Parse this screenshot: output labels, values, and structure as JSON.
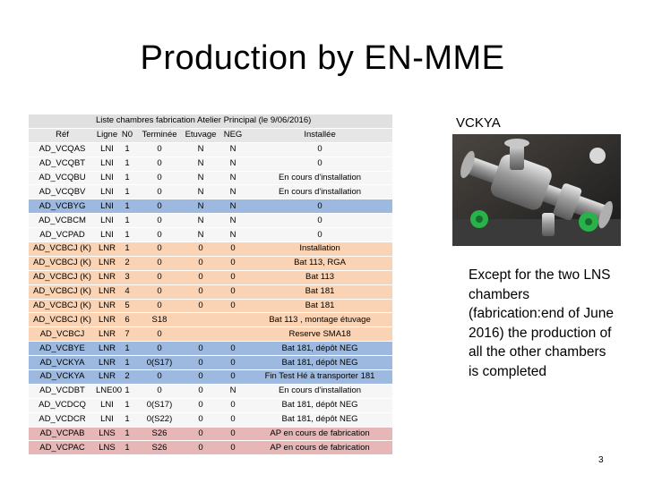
{
  "title": "Production by EN-MME",
  "table": {
    "caption": "Liste chambres fabrication Atelier Principal (le 9/06/2016)",
    "headers": [
      "Réf",
      "Ligne",
      "N0",
      "Terminée",
      "Etuvage",
      "NEG",
      "Installée"
    ],
    "rows": [
      {
        "style": "white",
        "cells": [
          "AD_VCQAS",
          "LNI",
          "1",
          "0",
          "N",
          "N",
          "0"
        ]
      },
      {
        "style": "white",
        "cells": [
          "AD_VCQBT",
          "LNI",
          "1",
          "0",
          "N",
          "N",
          "0"
        ]
      },
      {
        "style": "white",
        "cells": [
          "AD_VCQBU",
          "LNI",
          "1",
          "0",
          "N",
          "N",
          "En cours d'installation"
        ]
      },
      {
        "style": "white",
        "cells": [
          "AD_VCQBV",
          "LNI",
          "1",
          "0",
          "N",
          "N",
          "En cours d'installation"
        ]
      },
      {
        "style": "blue",
        "cells": [
          "AD_VCBYG",
          "LNI",
          "1",
          "0",
          "N",
          "N",
          "0"
        ]
      },
      {
        "style": "white",
        "cells": [
          "AD_VCBCM",
          "LNI",
          "1",
          "0",
          "N",
          "N",
          "0"
        ]
      },
      {
        "style": "white",
        "cells": [
          "AD_VCPAD",
          "LNI",
          "1",
          "0",
          "N",
          "N",
          "0"
        ]
      },
      {
        "style": "orange",
        "cells": [
          "AD_VCBCJ (K)",
          "LNR",
          "1",
          "0",
          "0",
          "0",
          "Installation"
        ]
      },
      {
        "style": "orange",
        "cells": [
          "AD_VCBCJ (K)",
          "LNR",
          "2",
          "0",
          "0",
          "0",
          "Bat 113, RGA"
        ]
      },
      {
        "style": "orange",
        "cells": [
          "AD_VCBCJ (K)",
          "LNR",
          "3",
          "0",
          "0",
          "0",
          "Bat 113"
        ]
      },
      {
        "style": "orange",
        "cells": [
          "AD_VCBCJ (K)",
          "LNR",
          "4",
          "0",
          "0",
          "0",
          "Bat 181"
        ]
      },
      {
        "style": "orange",
        "cells": [
          "AD_VCBCJ (K)",
          "LNR",
          "5",
          "0",
          "0",
          "0",
          "Bat 181"
        ]
      },
      {
        "style": "orange",
        "cells": [
          "AD_VCBCJ (K)",
          "LNR",
          "6",
          "S18",
          "",
          "",
          "Bat 113 , montage étuvage"
        ]
      },
      {
        "style": "orange",
        "cells": [
          "AD_VCBCJ",
          "LNR",
          "7",
          "0",
          "",
          "",
          "Reserve SMA18"
        ]
      },
      {
        "style": "blue",
        "cells": [
          "AD_VCBYE",
          "LNR",
          "1",
          "0",
          "0",
          "0",
          "Bat 181, dépôt NEG"
        ]
      },
      {
        "style": "blue",
        "cells": [
          "AD_VCKYA",
          "LNR",
          "1",
          "0(S17)",
          "0",
          "0",
          "Bat 181, dépôt NEG"
        ]
      },
      {
        "style": "blue",
        "cells": [
          "AD_VCKYA",
          "LNR",
          "2",
          "0",
          "0",
          "0",
          "Fin Test Hé à transporter 181"
        ]
      },
      {
        "style": "white",
        "cells": [
          "AD_VCDBT",
          "LNE00",
          "1",
          "0",
          "0",
          "N",
          "En cours d'installation"
        ]
      },
      {
        "style": "white",
        "cells": [
          "AD_VCDCQ",
          "LNI",
          "1",
          "0(S17)",
          "0",
          "0",
          "Bat 181, dépôt NEG"
        ]
      },
      {
        "style": "white",
        "cells": [
          "AD_VCDCR",
          "LNI",
          "1",
          "0(S22)",
          "0",
          "0",
          "Bat 181, dépôt NEG"
        ]
      },
      {
        "style": "pink",
        "cells": [
          "AD_VCPAB",
          "LNS",
          "1",
          "S26",
          "0",
          "0",
          "AP en cours de fabrication"
        ]
      },
      {
        "style": "pink",
        "cells": [
          "AD_VCPAC",
          "LNS",
          "1",
          "S26",
          "0",
          "0",
          "AP en cours de fabrication"
        ]
      }
    ]
  },
  "photo_label": "VCKYA",
  "note": "Except for the two LNS chambers (fabrication:end of June 2016) the production of all the other chambers is completed",
  "page_number": "3"
}
